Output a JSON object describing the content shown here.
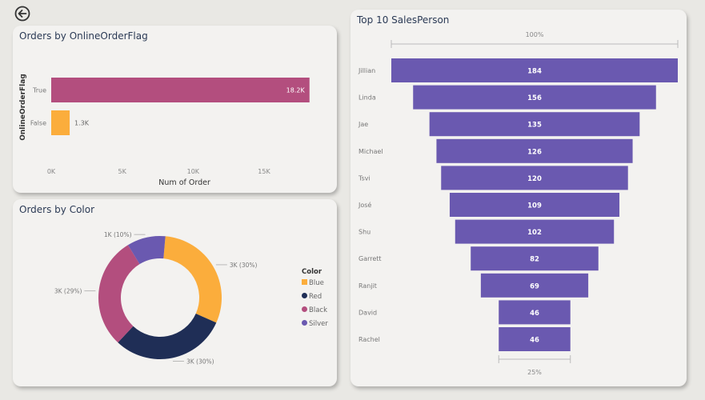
{
  "nav": {
    "back_icon": "arrow-left-circle-icon"
  },
  "chart_data": [
    {
      "type": "bar",
      "orientation": "horizontal",
      "title": "Orders by OnlineOrderFlag",
      "xlabel": "Num of Order",
      "ylabel": "OnlineOrderFlag",
      "categories": [
        "True",
        "False"
      ],
      "values": [
        18200,
        1300
      ],
      "data_labels": [
        "18.2K",
        "1.3K"
      ],
      "colors": [
        "#b34e7e",
        "#fbad3c"
      ],
      "xticks": [
        0,
        5000,
        10000,
        15000
      ],
      "xtick_labels": [
        "0K",
        "5K",
        "10K",
        "15K"
      ],
      "xlim": [
        0,
        18200
      ],
      "grid": false
    },
    {
      "type": "pie",
      "variant": "donut",
      "title": "Orders by Color",
      "legend_title": "Color",
      "legend_position": "right",
      "categories": [
        "Blue",
        "Red",
        "Black",
        "Silver"
      ],
      "values": [
        30,
        30,
        29,
        10
      ],
      "data_labels": [
        "3K (30%)",
        "3K (30%)",
        "3K (29%)",
        "1K (10%)"
      ],
      "colors": [
        "#fbad3c",
        "#1f2e56",
        "#b34e7e",
        "#6a59b0"
      ]
    },
    {
      "type": "funnel",
      "title": "Top 10 SalesPerson",
      "categories": [
        "Jillian",
        "Linda",
        "Jae",
        "Michael",
        "Tsvi",
        "José",
        "Shu",
        "Garrett",
        "Ranjit",
        "David",
        "Rachel"
      ],
      "values": [
        184,
        156,
        135,
        126,
        120,
        109,
        102,
        82,
        69,
        46,
        46
      ],
      "top_label": "100%",
      "bottom_label": "25%",
      "color": "#6a59b0"
    }
  ]
}
